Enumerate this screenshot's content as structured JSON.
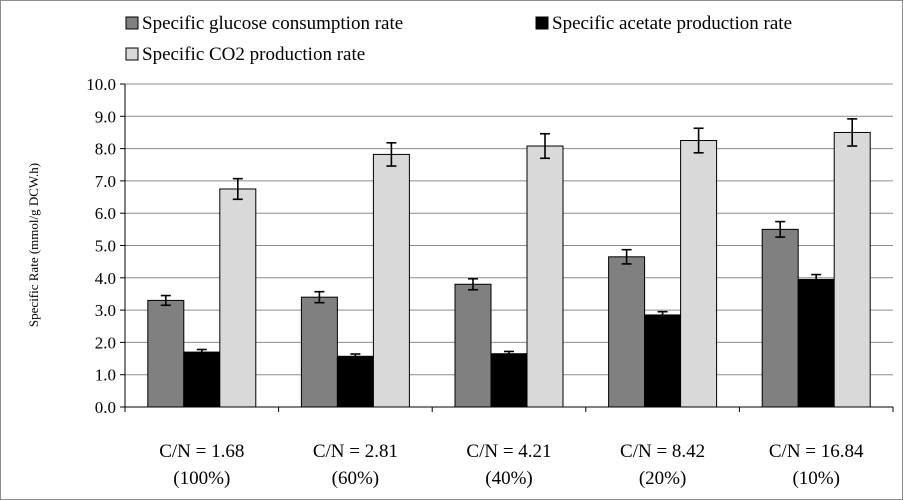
{
  "chart_data": {
    "type": "bar",
    "title": "",
    "xlabel": "",
    "ylabel": "Specific Rate (mmol/g DCW.h)",
    "ylim": [
      0,
      10
    ],
    "yticks": [
      "0.0",
      "1.0",
      "2.0",
      "3.0",
      "4.0",
      "5.0",
      "6.0",
      "7.0",
      "8.0",
      "9.0",
      "10.0"
    ],
    "grid": "horizontal",
    "legend_placement": "top",
    "categories": [
      [
        "C/N = 1.68",
        "(100%)"
      ],
      [
        "C/N = 2.81",
        "(60%)"
      ],
      [
        "C/N = 4.21",
        "(40%)"
      ],
      [
        "C/N = 8.42",
        "(20%)"
      ],
      [
        "C/N = 16.84",
        "(10%)"
      ]
    ],
    "series": [
      {
        "name": "Specific glucose consumption rate",
        "color": "#808080",
        "values": [
          3.3,
          3.4,
          3.8,
          4.65,
          5.5
        ],
        "errors": [
          0.15,
          0.17,
          0.17,
          0.22,
          0.24
        ]
      },
      {
        "name": "Specific acetate production rate",
        "color": "#000000",
        "values": [
          1.7,
          1.57,
          1.65,
          2.85,
          3.95
        ],
        "errors": [
          0.08,
          0.07,
          0.07,
          0.1,
          0.15
        ]
      },
      {
        "name": "Specific CO2 production rate",
        "color": "#d9d9d9",
        "values": [
          6.75,
          7.82,
          8.08,
          8.25,
          8.5
        ],
        "errors": [
          0.32,
          0.36,
          0.38,
          0.38,
          0.42
        ]
      }
    ]
  }
}
